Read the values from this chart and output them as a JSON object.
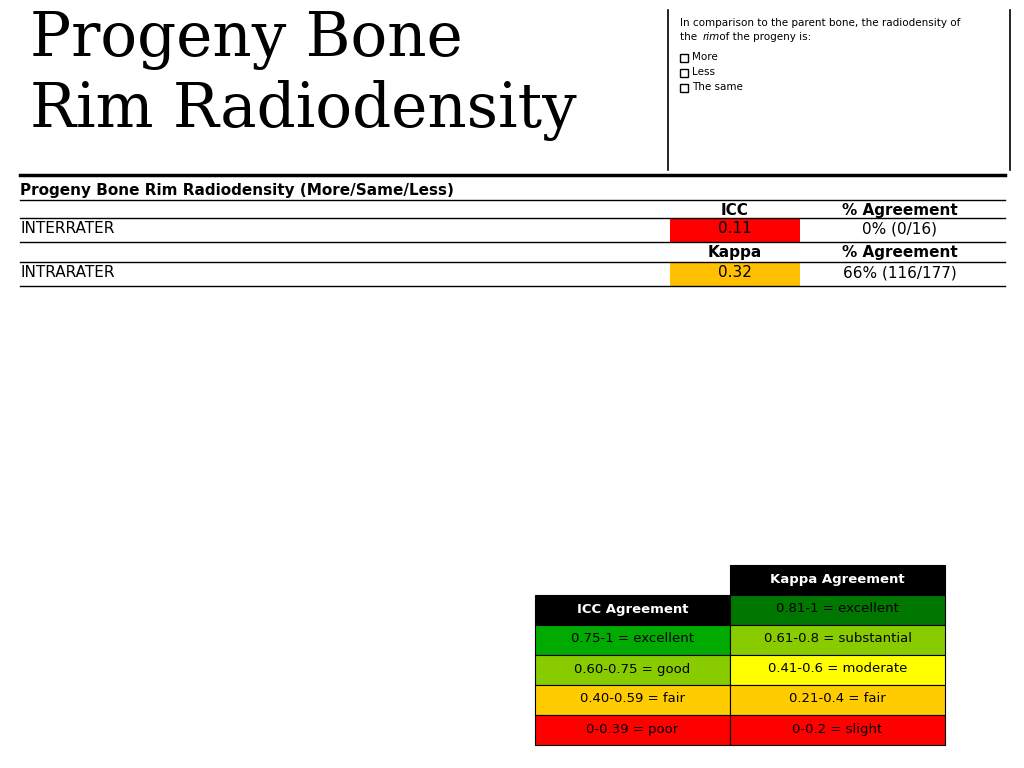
{
  "title_line1": "Progeny Bone",
  "title_line2": "Rim Radiodensity",
  "title_fontsize": 44,
  "section_title": "Progeny Bone Rim Radiodensity (More/Same/Less)",
  "sidebar_text_line1": "In comparison to the parent bone, the radiodensity of",
  "sidebar_text_line2_part1": "the ",
  "sidebar_text_line2_italic": "rim",
  "sidebar_text_line2_part2": " of the progeny is:",
  "sidebar_checkboxes": [
    "More",
    "Less",
    "The same"
  ],
  "table_header1_col1": "ICC",
  "table_header1_col2": "% Agreement",
  "row1_label": "INTERRATER",
  "row1_icc": "0.11",
  "row1_icc_color": "#FF0000",
  "row1_agreement": "0% (0/16)",
  "table_header2_col1": "Kappa",
  "table_header2_col2": "% Agreement",
  "row2_label": "INTRARATER",
  "row2_kappa": "0.32",
  "row2_kappa_color": "#FFC000",
  "row2_agreement": "66% (116/177)",
  "legend_icc_header": "ICC Agreement",
  "legend_kappa_header": "Kappa Agreement",
  "legend_icc_rows": [
    {
      "label": "0.75-1 = excellent",
      "color": "#00AA00"
    },
    {
      "label": "0.60-0.75 = good",
      "color": "#88CC00"
    },
    {
      "label": "0.40-0.59 = fair",
      "color": "#FFCC00"
    },
    {
      "label": "0-0.39 = poor",
      "color": "#FF0000"
    }
  ],
  "legend_kappa_rows": [
    {
      "label": "0.81-1 = excellent",
      "color": "#007700"
    },
    {
      "label": "0.61-0.8 = substantial",
      "color": "#88CC00"
    },
    {
      "label": "0.41-0.6 = moderate",
      "color": "#FFFF00"
    },
    {
      "label": "0.21-0.4 = fair",
      "color": "#FFCC00"
    },
    {
      "label": "0-0.2 = slight",
      "color": "#FF0000"
    }
  ],
  "bg_color": "#FFFFFF",
  "fig_width": 10.24,
  "fig_height": 7.68,
  "dpi": 100
}
